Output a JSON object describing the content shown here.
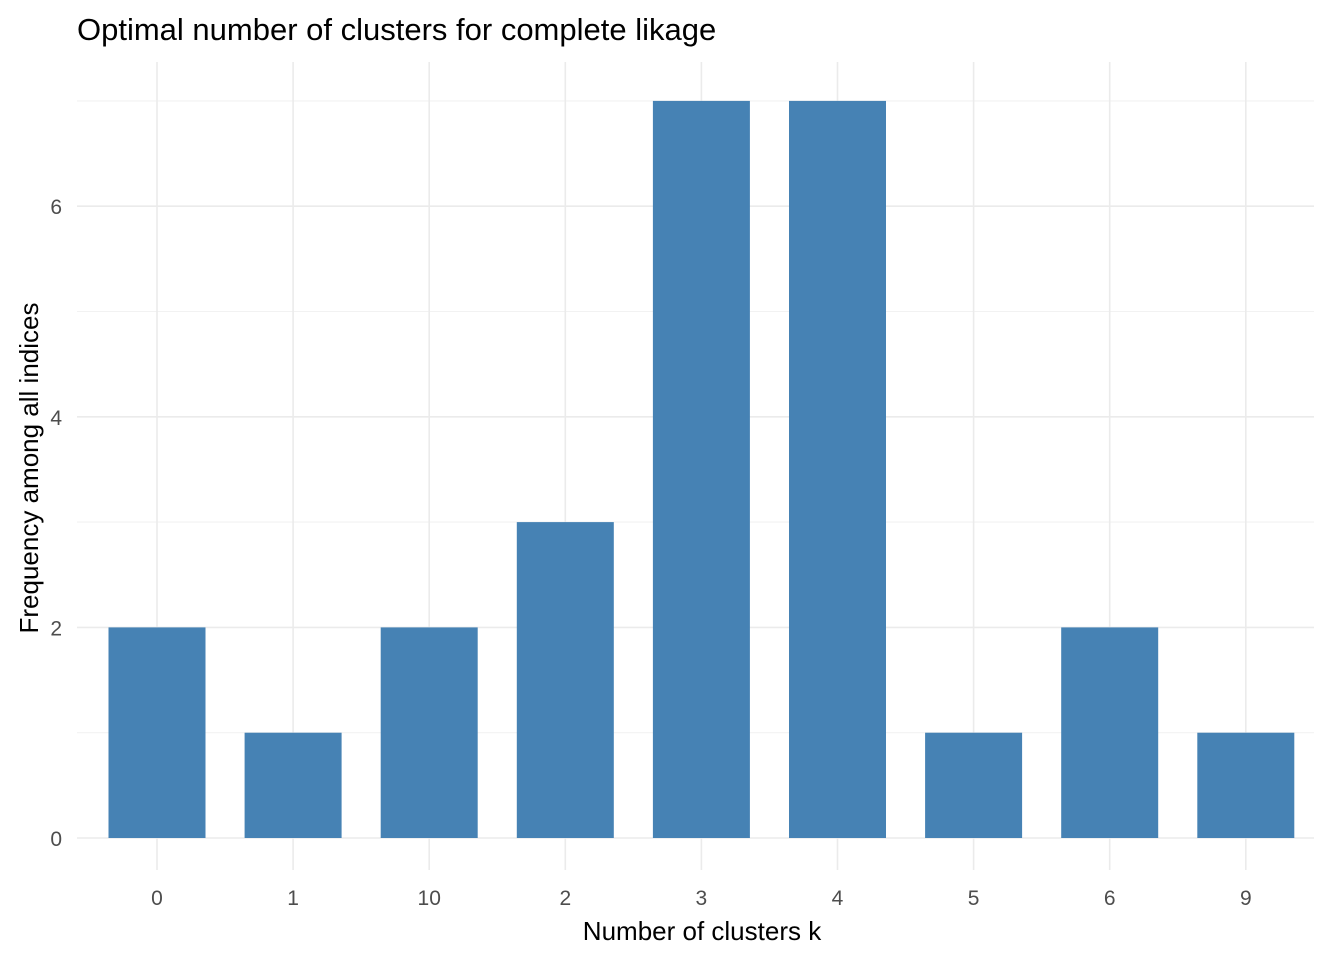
{
  "chart_data": {
    "type": "bar",
    "title": "Optimal number of clusters for complete likage",
    "xlabel": "Number of clusters k",
    "ylabel": "Frequency among all indices",
    "categories": [
      "0",
      "1",
      "10",
      "2",
      "3",
      "4",
      "5",
      "6",
      "9"
    ],
    "values": [
      2,
      1,
      2,
      3,
      7,
      7,
      1,
      2,
      1
    ],
    "ylim": [
      0,
      7
    ],
    "yticks": [
      0,
      2,
      4,
      6
    ],
    "grid": true,
    "legend": "none",
    "bar_color": "#4682B4"
  }
}
